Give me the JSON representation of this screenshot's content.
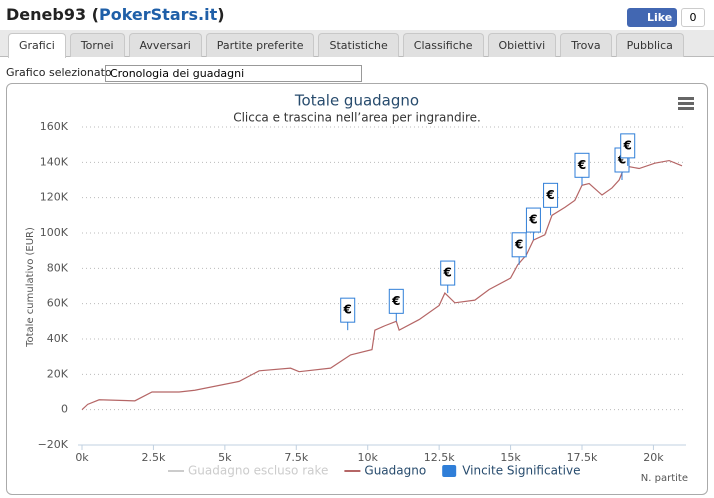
{
  "header": {
    "title": [
      "Deneb93 (",
      "PokerStars.it",
      ")"
    ],
    "like": "Like",
    "like_count": "0"
  },
  "tabs": [
    "Grafici",
    "Tornei",
    "Avversari",
    "Partite preferite",
    "Statistiche",
    "Classifiche",
    "Obiettivi",
    "Trova",
    "Pubblica"
  ],
  "selector": {
    "label": "Grafico selezionato",
    "value": "Cronologia dei guadagni"
  },
  "chart_data": {
    "type": "line",
    "title": "Totale guadagno",
    "subtitle": "Clicca e trascina nell’area per ingrandire.",
    "x_label": "N. partite",
    "y_label": "Totale cumulativo (EUR)",
    "xlim": [
      0,
      21000
    ],
    "ylim": [
      -20000,
      160000
    ],
    "xticks": [
      {
        "value": 0,
        "label": "0k"
      },
      {
        "value": 2500,
        "label": "2.5k"
      },
      {
        "value": 5000,
        "label": "5k"
      },
      {
        "value": 7500,
        "label": "7.5k"
      },
      {
        "value": 10000,
        "label": "10k"
      },
      {
        "value": 12500,
        "label": "12.5k"
      },
      {
        "value": 15000,
        "label": "15k"
      },
      {
        "value": 17500,
        "label": "17.5k"
      },
      {
        "value": 20000,
        "label": "20k"
      }
    ],
    "yticks": [
      {
        "value": -20000,
        "label": "−20K"
      },
      {
        "value": 0,
        "label": "0"
      },
      {
        "value": 20000,
        "label": "20K"
      },
      {
        "value": 40000,
        "label": "40K"
      },
      {
        "value": 60000,
        "label": "60K"
      },
      {
        "value": 80000,
        "label": "80K"
      },
      {
        "value": 100000,
        "label": "100K"
      },
      {
        "value": 120000,
        "label": "120K"
      },
      {
        "value": 140000,
        "label": "140K"
      },
      {
        "value": 160000,
        "label": "160K"
      }
    ],
    "grid": true,
    "series": [
      {
        "name": "Guadagno escluso rake",
        "color": "#cccccc",
        "visible": false
      },
      {
        "name": "Guadagno",
        "color": "#b56666",
        "x": [
          0,
          200,
          600,
          1850,
          2450,
          3400,
          3950,
          5500,
          6200,
          7300,
          7600,
          8700,
          9400,
          10150,
          10250,
          10600,
          11000,
          11100,
          11800,
          12500,
          12700,
          13050,
          13750,
          14250,
          15000,
          15250,
          15550,
          15800,
          16200,
          16450,
          16900,
          17250,
          17500,
          17750,
          18200,
          18550,
          18800,
          19000,
          19500,
          20050,
          20550,
          21000
        ],
        "values": [
          0,
          3000,
          5600,
          5000,
          10000,
          10000,
          11000,
          16000,
          22000,
          23500,
          21500,
          23500,
          31000,
          34000,
          45000,
          47500,
          50000,
          45000,
          51000,
          59000,
          66000,
          60500,
          62000,
          68000,
          74500,
          82000,
          87500,
          96000,
          99000,
          110000,
          114500,
          118500,
          127000,
          128000,
          121500,
          125500,
          130000,
          138000,
          136500,
          139500,
          141000,
          138000
        ]
      },
      {
        "name": "Vincite Significative",
        "color": "#2f7ed8",
        "flag_label": "€",
        "x": [
          9300,
          11000,
          12800,
          15300,
          15800,
          16400,
          17500,
          18900,
          19100
        ],
        "values": [
          45000,
          50000,
          66000,
          82000,
          96000,
          110000,
          127000,
          130000,
          138000
        ]
      }
    ]
  }
}
